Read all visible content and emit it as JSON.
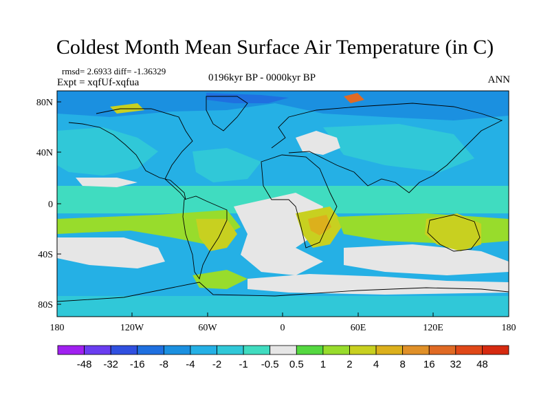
{
  "title": "Coldest Month Mean Surface Air Temperature (in C)",
  "stats": "rmsd= 2.6933 diff= -1.36329",
  "experiment": "Expt = xqfUf-xqfua",
  "period": "0196kyr BP - 0000kyr BP",
  "season": "ANN",
  "lat_ticks": [
    "80N",
    "40N",
    "0",
    "40S",
    "80S"
  ],
  "lon_ticks": [
    "180",
    "120W",
    "60W",
    "0",
    "60E",
    "120E",
    "180"
  ],
  "colorbar": {
    "labels": [
      "-48",
      "-32",
      "-16",
      "-8",
      "-4",
      "-2",
      "-1",
      "-0.5",
      "0.5",
      "1",
      "2",
      "4",
      "8",
      "16",
      "32",
      "48"
    ],
    "colors": [
      "#a020f0",
      "#6a3df0",
      "#3050e0",
      "#1f70e0",
      "#1b90e0",
      "#25b0e5",
      "#30c8d8",
      "#40dcc0",
      "#e6e6e6",
      "#55d840",
      "#98dc2c",
      "#c8d020",
      "#dcb01c",
      "#e09028",
      "#e06a24",
      "#e04818",
      "#d62a10"
    ]
  },
  "chart_data": {
    "type": "heatmap",
    "title": "Coldest Month Mean Surface Air Temperature (in C)",
    "units": "C",
    "x_range": [
      -180,
      180
    ],
    "y_range": [
      -90,
      90
    ],
    "x_ticks": [
      -180,
      -120,
      -60,
      0,
      60,
      120,
      180
    ],
    "y_ticks": [
      80,
      40,
      0,
      -40,
      -80
    ],
    "levels": [
      -48,
      -32,
      -16,
      -8,
      -4,
      -2,
      -1,
      -0.5,
      0.5,
      1,
      2,
      4,
      8,
      16,
      32,
      48
    ]
  }
}
